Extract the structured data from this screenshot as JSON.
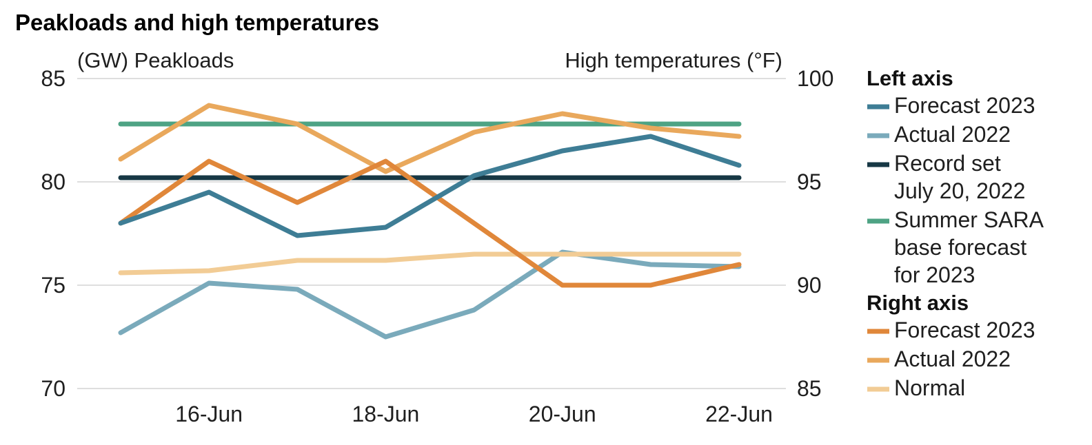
{
  "chart_data": {
    "type": "line",
    "title": "Peakloads and high temperatures",
    "left_axis": {
      "label": "(GW) Peakloads",
      "ylim": [
        70,
        85
      ],
      "ticks": [
        70,
        75,
        80,
        85
      ]
    },
    "right_axis": {
      "label": "High temperatures (°F)",
      "ylim": [
        85,
        100
      ],
      "ticks": [
        85,
        90,
        95,
        100
      ]
    },
    "x": [
      15,
      16,
      17,
      18,
      19,
      20,
      21,
      22
    ],
    "x_tick_values": [
      16,
      18,
      20,
      22
    ],
    "x_tick_labels": [
      "16-Jun",
      "18-Jun",
      "20-Jun",
      "22-Jun"
    ],
    "grid": true,
    "legend": [
      {
        "header": "Left axis",
        "axis": "left",
        "items": [
          0,
          1,
          2,
          3
        ]
      },
      {
        "header": "Right axis",
        "axis": "right",
        "items": [
          4,
          5,
          6
        ]
      }
    ],
    "series": [
      {
        "name": "Forecast 2023",
        "axis": "left",
        "color": "#3e7d95",
        "values": [
          78.0,
          79.5,
          77.4,
          77.8,
          80.3,
          81.5,
          82.2,
          80.8
        ]
      },
      {
        "name": "Actual 2022",
        "axis": "left",
        "color": "#7aaabb",
        "values": [
          72.7,
          75.1,
          74.8,
          72.5,
          73.8,
          76.6,
          76.0,
          75.9
        ]
      },
      {
        "name": "Record set July 20, 2022",
        "label_lines": [
          "Record set",
          "July 20, 2022"
        ],
        "axis": "left",
        "color": "#173845",
        "values": [
          80.2,
          80.2,
          80.2,
          80.2,
          80.2,
          80.2,
          80.2,
          80.2
        ]
      },
      {
        "name": "Summer SARA base forecast for 2023",
        "label_lines": [
          "Summer SARA",
          "base forecast",
          "for 2023"
        ],
        "axis": "left",
        "color": "#4ea384",
        "values": [
          82.8,
          82.8,
          82.8,
          82.8,
          82.8,
          82.8,
          82.8,
          82.8
        ]
      },
      {
        "name": "Forecast 2023",
        "axis": "right",
        "color": "#e0873a",
        "values": [
          93.0,
          96.0,
          94.0,
          96.0,
          93.0,
          90.0,
          90.0,
          91.0
        ]
      },
      {
        "name": "Actual 2022",
        "axis": "right",
        "color": "#e9a85c",
        "values": [
          96.1,
          98.7,
          97.8,
          95.5,
          97.4,
          98.3,
          97.6,
          97.2
        ]
      },
      {
        "name": "Normal",
        "axis": "right",
        "color": "#f2cc95",
        "values": [
          90.6,
          90.7,
          91.2,
          91.2,
          91.5,
          91.5,
          91.5,
          91.5
        ]
      }
    ]
  }
}
